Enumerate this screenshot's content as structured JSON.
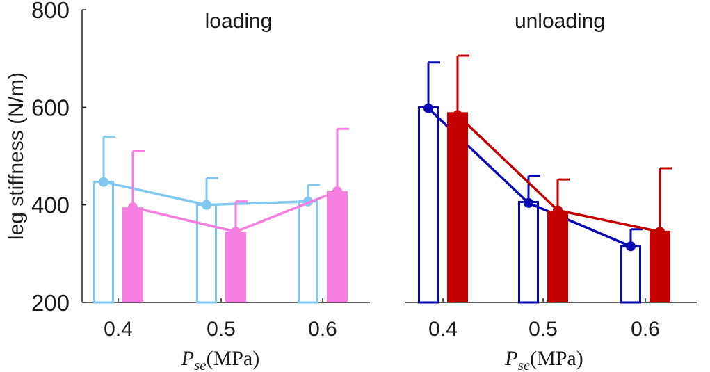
{
  "chart_data": {
    "type": "bar",
    "ylabel": "leg stiffness (N/m)",
    "ylim": [
      200,
      800
    ],
    "yticks": [
      200,
      400,
      600,
      800
    ],
    "xlabel_symbol": "P",
    "xlabel_subscript": "se",
    "xlabel_unit": "(MPa)",
    "panels": [
      {
        "title": "loading",
        "categories": [
          "0.4",
          "0.5",
          "0.6"
        ],
        "series": [
          {
            "name": "open",
            "style": "open",
            "color": "#80c8f0",
            "values": [
              447,
              400,
              407
            ],
            "errors": [
              540,
              455,
              441
            ],
            "line": [
              447,
              400,
              407
            ]
          },
          {
            "name": "filled",
            "style": "filled",
            "color": "#f57ee0",
            "values": [
              395,
              345,
              428
            ],
            "errors": [
              510,
              407,
              556
            ],
            "line": [
              395,
              345,
              428
            ]
          }
        ]
      },
      {
        "title": "unloading",
        "categories": [
          "0.4",
          "0.5",
          "0.6"
        ],
        "series": [
          {
            "name": "open",
            "style": "open",
            "color": "#0a0ab4",
            "values": [
              600,
              406,
              316
            ],
            "errors": [
              692,
              460,
              350
            ],
            "line": [
              598,
              404,
              315
            ]
          },
          {
            "name": "filled",
            "style": "filled",
            "color": "#c40000",
            "values": [
              590,
              388,
              347
            ],
            "errors": [
              706,
              452,
              475
            ],
            "line": [
              584,
              389,
              345
            ]
          }
        ]
      }
    ]
  }
}
